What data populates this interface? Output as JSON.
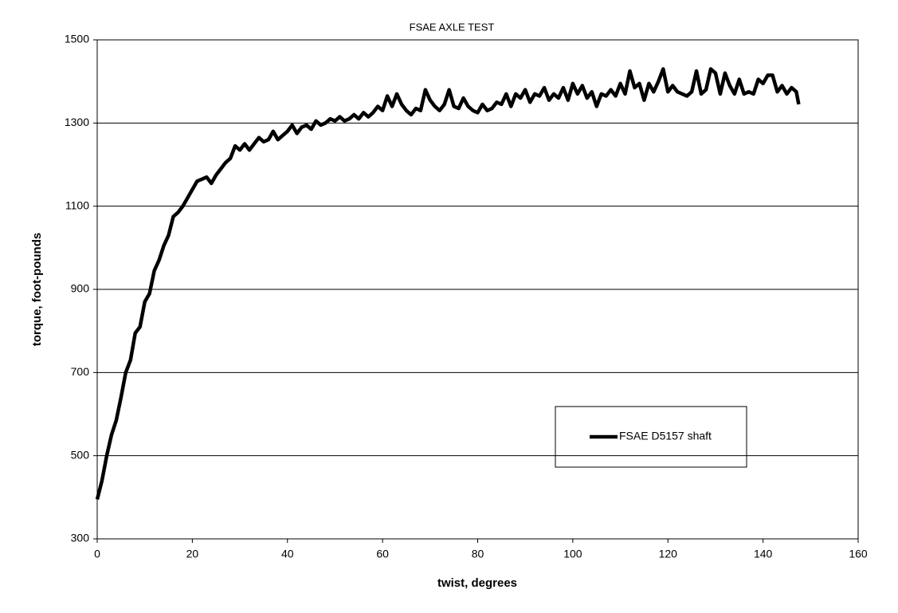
{
  "chart_data": {
    "type": "line",
    "title": "FSAE AXLE TEST",
    "x_label": "twist, degrees",
    "y_label": "torque, foot-pounds",
    "x": [
      0,
      1,
      2,
      3,
      4,
      5,
      6,
      7,
      8,
      9,
      10,
      11,
      12,
      13,
      14,
      15,
      16,
      17,
      18,
      19,
      20,
      21,
      22,
      23,
      24,
      25,
      26,
      27,
      28,
      29,
      30,
      31,
      32,
      33,
      34,
      35,
      36,
      37,
      38,
      39,
      40,
      41,
      42,
      43,
      44,
      45,
      46,
      47,
      48,
      49,
      50,
      51,
      52,
      53,
      54,
      55,
      56,
      57,
      58,
      59,
      60,
      61,
      62,
      63,
      64,
      65,
      66,
      67,
      68,
      69,
      70,
      71,
      72,
      73,
      74,
      75,
      76,
      77,
      78,
      79,
      80,
      81,
      82,
      83,
      84,
      85,
      86,
      87,
      88,
      89,
      90,
      91,
      92,
      93,
      94,
      95,
      96,
      97,
      98,
      99,
      100,
      101,
      102,
      103,
      104,
      105,
      106,
      107,
      108,
      109,
      110,
      111,
      112,
      113,
      114,
      115,
      116,
      117,
      118,
      119,
      120,
      121,
      122,
      123,
      124,
      125,
      126,
      127,
      128,
      129,
      130,
      131,
      132,
      133,
      134,
      135,
      136,
      137,
      138,
      139,
      140,
      141,
      142,
      143,
      144,
      145,
      146,
      147,
      147.5
    ],
    "series": [
      {
        "name": "FSAE D5157 shaft",
        "color": "#000000",
        "values": [
          395,
          440,
          500,
          550,
          585,
          640,
          700,
          730,
          795,
          810,
          870,
          890,
          945,
          970,
          1005,
          1030,
          1075,
          1085,
          1100,
          1120,
          1140,
          1160,
          1165,
          1170,
          1155,
          1175,
          1190,
          1205,
          1215,
          1245,
          1235,
          1250,
          1235,
          1250,
          1265,
          1255,
          1260,
          1280,
          1260,
          1270,
          1280,
          1295,
          1275,
          1290,
          1295,
          1285,
          1305,
          1295,
          1300,
          1310,
          1305,
          1315,
          1305,
          1310,
          1320,
          1310,
          1325,
          1315,
          1325,
          1340,
          1330,
          1365,
          1340,
          1370,
          1345,
          1330,
          1320,
          1335,
          1330,
          1380,
          1355,
          1340,
          1330,
          1345,
          1380,
          1340,
          1335,
          1360,
          1340,
          1330,
          1325,
          1345,
          1330,
          1335,
          1350,
          1345,
          1370,
          1340,
          1370,
          1360,
          1380,
          1350,
          1370,
          1365,
          1385,
          1355,
          1370,
          1360,
          1385,
          1355,
          1395,
          1370,
          1390,
          1360,
          1375,
          1340,
          1370,
          1365,
          1380,
          1365,
          1395,
          1370,
          1425,
          1385,
          1395,
          1355,
          1395,
          1375,
          1400,
          1430,
          1375,
          1390,
          1375,
          1370,
          1365,
          1375,
          1425,
          1370,
          1380,
          1430,
          1420,
          1370,
          1420,
          1390,
          1370,
          1405,
          1370,
          1375,
          1370,
          1405,
          1395,
          1415,
          1415,
          1375,
          1390,
          1370,
          1385,
          1375,
          1345
        ]
      }
    ],
    "xlim": [
      0,
      160
    ],
    "xticks": [
      0,
      20,
      40,
      60,
      80,
      100,
      120,
      140,
      160
    ],
    "ylim": [
      300,
      1500
    ],
    "yticks": [
      300,
      500,
      700,
      900,
      1100,
      1300,
      1500
    ],
    "grid": true
  }
}
